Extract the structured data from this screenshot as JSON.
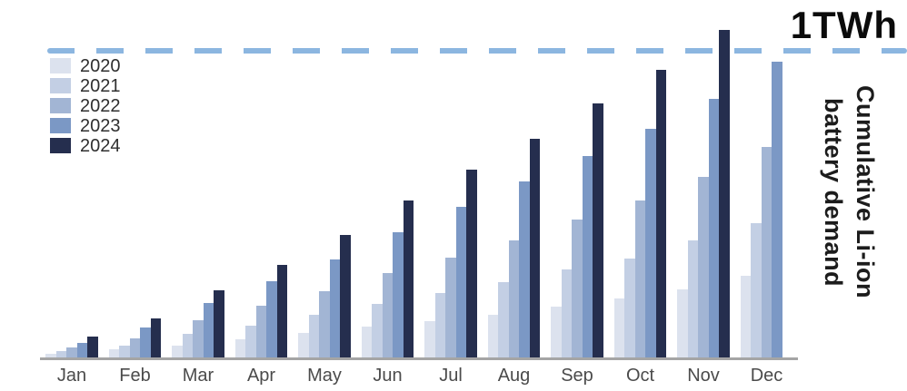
{
  "title": "1TWh",
  "right_label": {
    "line1": "Cumulative Li-ion",
    "line2": "battery demand"
  },
  "colors": {
    "reference_line": "#8cb6e0",
    "axis_line": "#a5a5a5",
    "title_text": "#0b0b0b",
    "month_label_text": "#4b4b4b",
    "legend_text": "#2f2f2f"
  },
  "legend": [
    {
      "label": "2020",
      "color": "#dce2ee"
    },
    {
      "label": "2021",
      "color": "#c3cfe4"
    },
    {
      "label": "2022",
      "color": "#a2b5d4"
    },
    {
      "label": "2023",
      "color": "#7b98c5"
    },
    {
      "label": "2024",
      "color": "#252e4e"
    }
  ],
  "chart_data": {
    "type": "bar",
    "title": "1TWh",
    "ylabel": "Cumulative Li-ion battery demand",
    "unit": "GWh",
    "categories": [
      "Jan",
      "Feb",
      "Mar",
      "Apr",
      "May",
      "Jun",
      "Jul",
      "Aug",
      "Sep",
      "Oct",
      "Nov",
      "Dec"
    ],
    "series": [
      {
        "name": "2020",
        "color": "#dce2ee",
        "values": [
          15,
          29,
          41,
          63,
          83,
          103,
          120,
          142,
          168,
          195,
          225,
          268
        ]
      },
      {
        "name": "2021",
        "color": "#c3cfe4",
        "values": [
          23,
          42,
          80,
          107,
          142,
          177,
          212,
          248,
          290,
          324,
          383,
          439
        ]
      },
      {
        "name": "2022",
        "color": "#a2b5d4",
        "values": [
          35,
          65,
          124,
          172,
          218,
          276,
          327,
          383,
          452,
          513,
          591,
          687
        ]
      },
      {
        "name": "2023",
        "color": "#7b98c5",
        "values": [
          50,
          101,
          179,
          250,
          321,
          411,
          494,
          575,
          659,
          747,
          845,
          965
        ]
      },
      {
        "name": "2024",
        "color": "#252e4e",
        "values": [
          70,
          129,
          221,
          305,
          401,
          514,
          614,
          715,
          829,
          939,
          1068,
          null
        ]
      }
    ],
    "ylim": [
      0,
      1170
    ],
    "reference_line": {
      "value": 1000,
      "label": "1TWh"
    },
    "grid": false,
    "legend_position": "top-left",
    "notes": "No 2024 bar for Dec; Nov 2024 bar exceeds the 1TWh dashed reference line"
  }
}
